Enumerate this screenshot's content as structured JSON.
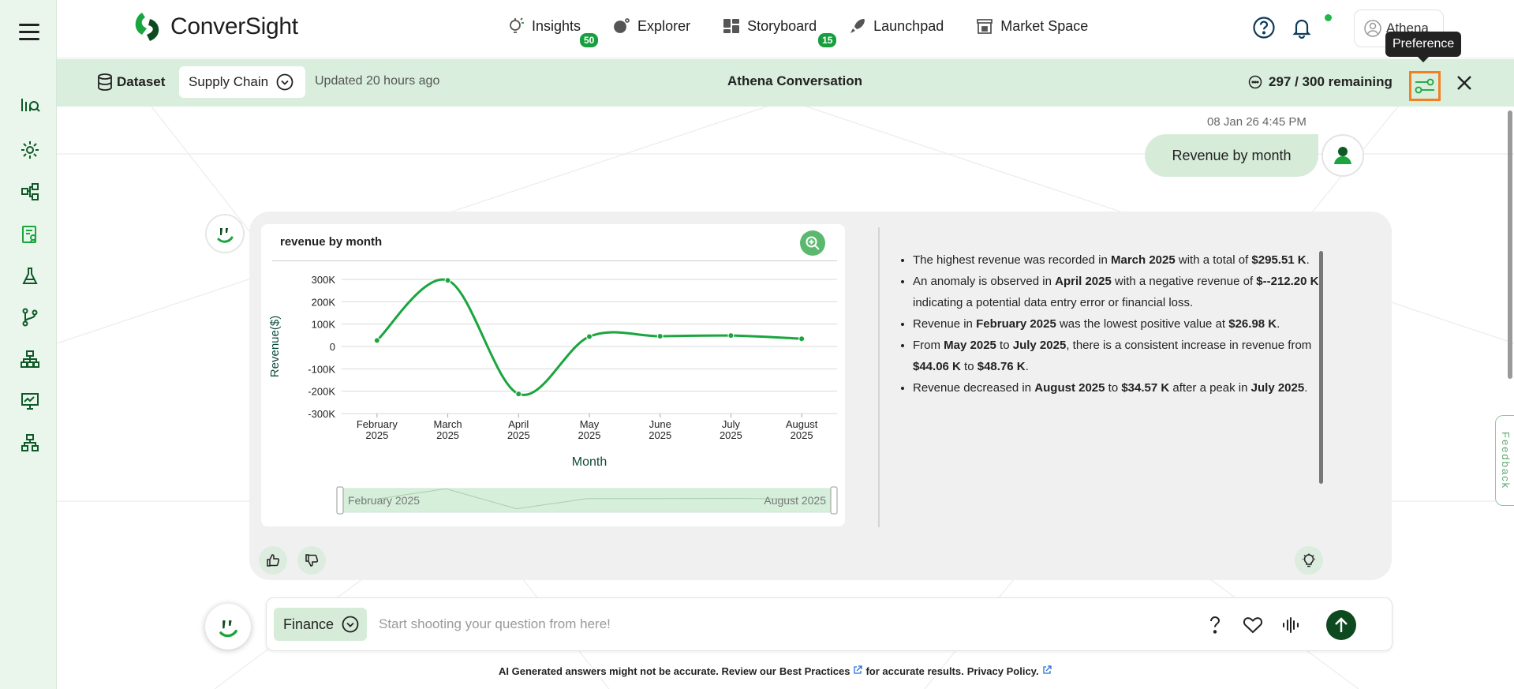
{
  "app": {
    "logo_text": "ConverSight"
  },
  "nav": [
    {
      "label": "Insights",
      "icon": "insights-bulb-icon",
      "badge": "50"
    },
    {
      "label": "Explorer",
      "icon": "explorer-icon",
      "badge": ""
    },
    {
      "label": "Storyboard",
      "icon": "storyboard-icon",
      "badge": "15"
    },
    {
      "label": "Launchpad",
      "icon": "rocket-icon",
      "badge": ""
    },
    {
      "label": "Market Space",
      "icon": "store-icon",
      "badge": ""
    }
  ],
  "user": {
    "name": "Athena"
  },
  "tooltip": {
    "text": "Preference"
  },
  "conversation_bar": {
    "dataset_label": "Dataset",
    "dataset_value": "Supply Chain",
    "updated": "Updated 20 hours ago",
    "title": "Athena Conversation",
    "remaining": "297 / 300 remaining"
  },
  "chat": {
    "timestamp": "08 Jan 26 4:45 PM",
    "user_message": "Revenue by month"
  },
  "chart": {
    "title": "revenue by month",
    "slider_start": "February 2025",
    "slider_end": "August 2025"
  },
  "chart_data": {
    "type": "line",
    "title": "revenue by month",
    "xlabel": "Month",
    "ylabel": "Revenue($)",
    "categories": [
      [
        "February",
        "2025"
      ],
      [
        "March",
        "2025"
      ],
      [
        "April",
        "2025"
      ],
      [
        "May",
        "2025"
      ],
      [
        "June",
        "2025"
      ],
      [
        "July",
        "2025"
      ],
      [
        "August",
        "2025"
      ]
    ],
    "values": [
      26.98,
      295.51,
      -212.2,
      44.06,
      46.0,
      48.76,
      34.57
    ],
    "value_unit": "K",
    "y_ticks": [
      "300K",
      "200K",
      "100K",
      "0",
      "-100K",
      "-200K",
      "-300K"
    ],
    "ylim": [
      -300,
      300
    ],
    "grid": true,
    "color": "#1aa53e"
  },
  "insights": [
    [
      {
        "t": "The highest revenue was recorded in "
      },
      {
        "t": "March 2025",
        "b": true
      },
      {
        "t": " with a total of "
      },
      {
        "t": "$295.51 K",
        "b": true
      },
      {
        "t": "."
      }
    ],
    [
      {
        "t": "An anomaly is observed in "
      },
      {
        "t": "April 2025",
        "b": true
      },
      {
        "t": " with a negative revenue of "
      },
      {
        "t": "$--212.20 K",
        "b": true
      },
      {
        "t": ", indicating a potential data entry error or financial loss."
      }
    ],
    [
      {
        "t": "Revenue in "
      },
      {
        "t": "February 2025",
        "b": true
      },
      {
        "t": " was the lowest positive value at "
      },
      {
        "t": "$26.98 K",
        "b": true
      },
      {
        "t": "."
      }
    ],
    [
      {
        "t": "From "
      },
      {
        "t": "May 2025",
        "b": true
      },
      {
        "t": " to "
      },
      {
        "t": "July 2025",
        "b": true
      },
      {
        "t": ", there is a consistent increase in revenue from "
      },
      {
        "t": "$44.06 K",
        "b": true
      },
      {
        "t": " to "
      },
      {
        "t": "$48.76 K",
        "b": true
      },
      {
        "t": "."
      }
    ],
    [
      {
        "t": "Revenue decreased in "
      },
      {
        "t": "August 2025",
        "b": true
      },
      {
        "t": " to "
      },
      {
        "t": "$34.57 K",
        "b": true
      },
      {
        "t": " after a peak in "
      },
      {
        "t": "July 2025",
        "b": true
      },
      {
        "t": "."
      }
    ]
  ],
  "input": {
    "domain": "Finance",
    "placeholder": "Start shooting your question from here!"
  },
  "footer": {
    "disclaimer_prefix": "AI Generated answers might not be accurate. Review our ",
    "best_practices": "Best Practices",
    "disclaimer_middle": " for accurate results. ",
    "privacy": "Privacy Policy."
  },
  "feedback": {
    "label": "Feedback"
  },
  "colors": {
    "brand_green": "#1aa53e",
    "highlight_orange": "#f27f24",
    "header_green": "#d9eedc"
  }
}
